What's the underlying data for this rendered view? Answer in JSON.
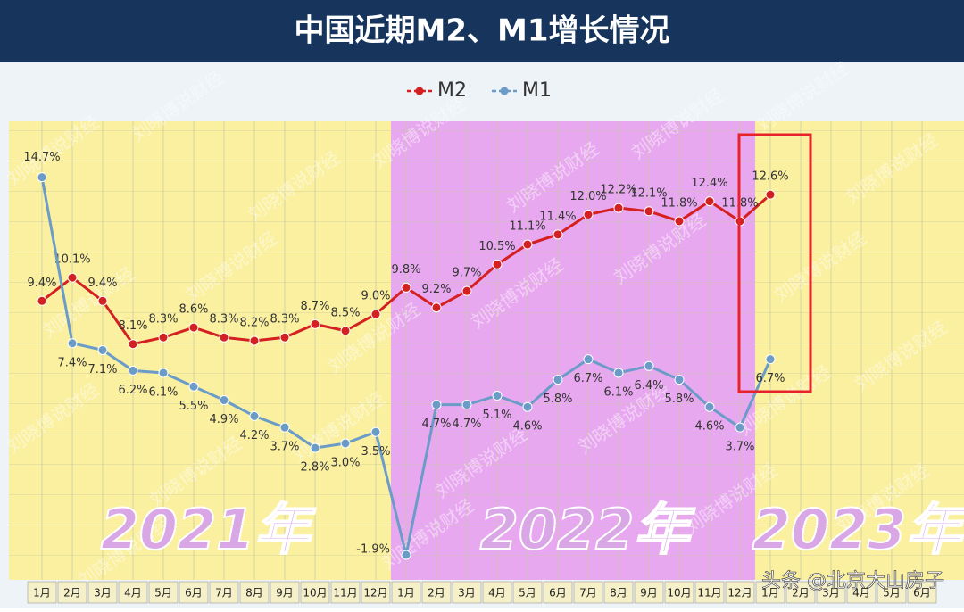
{
  "chart_data": {
    "type": "line",
    "title": "中国近期M2、M1增长情况",
    "categories": [
      "1月",
      "2月",
      "3月",
      "4月",
      "5月",
      "6月",
      "7月",
      "8月",
      "9月",
      "10月",
      "11月",
      "12月",
      "1月",
      "2月",
      "3月",
      "4月",
      "5月",
      "6月",
      "7月",
      "8月",
      "9月",
      "10月",
      "11月",
      "12月",
      "1月",
      "2月",
      "3月",
      "4月",
      "5月",
      "6月"
    ],
    "series": [
      {
        "name": "M2",
        "color": "#d42020",
        "values": [
          9.4,
          10.1,
          9.4,
          8.1,
          8.3,
          8.6,
          8.3,
          8.2,
          8.3,
          8.7,
          8.5,
          9.0,
          9.8,
          9.2,
          9.7,
          10.5,
          11.1,
          11.4,
          12.0,
          12.2,
          12.1,
          11.8,
          12.4,
          11.8,
          12.6,
          null,
          null,
          null,
          null,
          null
        ],
        "value_labels": [
          "9.4%",
          "10.1%",
          "9.4%",
          "8.1%",
          "8.3%",
          "8.6%",
          "8.3%",
          "8.2%",
          "8.3%",
          "8.7%",
          "8.5%",
          "9.0%",
          "9.8%",
          "9.2%",
          "9.7%",
          "10.5%",
          "11.1%",
          "11.4%",
          "12.0%",
          "12.2%",
          "12.1%",
          "11.8%",
          "12.4%",
          "11.8%",
          "12.6%",
          null,
          null,
          null,
          null,
          null
        ]
      },
      {
        "name": "M1",
        "color": "#6b9bc7",
        "axis": "y2",
        "values": [
          14.7,
          7.4,
          7.1,
          6.2,
          6.1,
          5.5,
          4.9,
          4.2,
          3.7,
          2.8,
          3.0,
          3.5,
          -1.9,
          4.7,
          4.7,
          5.1,
          4.6,
          5.8,
          6.7,
          6.1,
          6.4,
          5.8,
          4.6,
          3.7,
          6.7,
          null,
          null,
          null,
          null,
          null
        ],
        "value_labels": [
          "14.7%",
          "7.4%",
          "7.1%",
          "6.2%",
          "6.1%",
          "5.5%",
          "4.9%",
          "4.2%",
          "3.7%",
          "2.8%",
          "3.0%",
          "3.5%",
          "-1.9%",
          "4.7%",
          "4.7%",
          "5.1%",
          "4.6%",
          "5.8%",
          "6.7%",
          "6.1%",
          "6.4%",
          "5.8%",
          "4.6%",
          "3.7%",
          "6.7%",
          null,
          null,
          null,
          null,
          null
        ]
      }
    ],
    "ylim": [
      1,
      14.7
    ],
    "y2lim": [
      -3,
      17
    ],
    "annotations": [
      "2021年",
      "2022年",
      "2023年"
    ],
    "watermark": "刘晓博说财经",
    "credit": "头条 @北京大山房子",
    "legend": "top"
  }
}
